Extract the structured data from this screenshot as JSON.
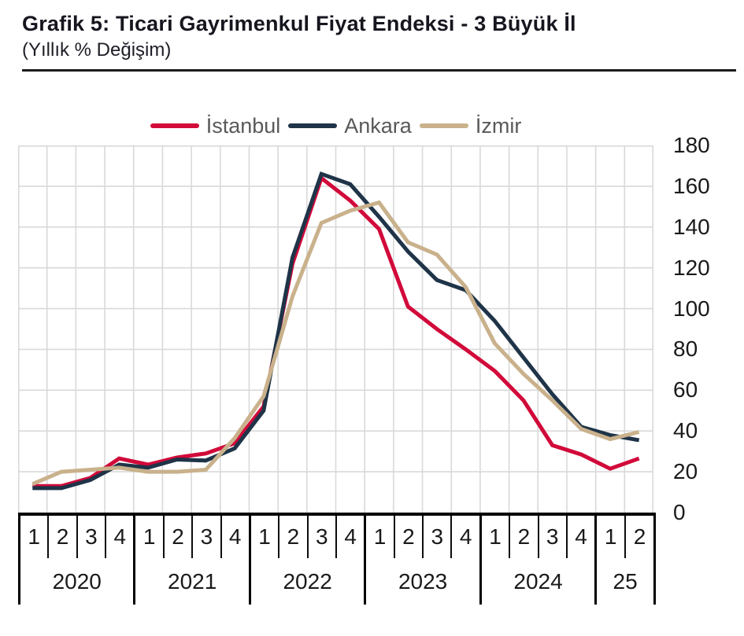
{
  "header": {
    "title": "Grafik 5: Ticari Gayrimenkul Fiyat Endeksi - 3 Büyük İl",
    "subtitle": "(Yıllık % Değişim)"
  },
  "colors": {
    "istanbul": "#d10a3a",
    "ankara": "#1f3448",
    "izmir": "#c9b18c",
    "gridline": "#d9d9d9",
    "axis": "#000000",
    "tick_text": "#1a1a1a",
    "legend_text": "#595959"
  },
  "chart_data": {
    "type": "line",
    "title": "Grafik 5: Ticari Gayrimenkul Fiyat Endeksi - 3 Büyük İl",
    "subtitle": "(Yıllık % Değişim)",
    "ylabel": "",
    "xlabel": "",
    "ylim": [
      0,
      180
    ],
    "yticks": [
      180,
      160,
      140,
      120,
      100,
      80,
      60,
      40,
      20,
      0
    ],
    "grid": true,
    "legend_position": "top",
    "years": [
      {
        "label": "2020",
        "quarters": [
          "1",
          "2",
          "3",
          "4"
        ]
      },
      {
        "label": "2021",
        "quarters": [
          "1",
          "2",
          "3",
          "4"
        ]
      },
      {
        "label": "2022",
        "quarters": [
          "1",
          "2",
          "3",
          "4"
        ]
      },
      {
        "label": "2023",
        "quarters": [
          "1",
          "2",
          "3",
          "4"
        ]
      },
      {
        "label": "2024",
        "quarters": [
          "1",
          "2",
          "3",
          "4"
        ]
      },
      {
        "label": "25",
        "quarters": [
          "1",
          "2"
        ]
      }
    ],
    "series": [
      {
        "name": "İstanbul",
        "color": "#d10a3a",
        "values": [
          13,
          13,
          17,
          26.5,
          23.5,
          27,
          29,
          34,
          52,
          122,
          164,
          153,
          139,
          101,
          90,
          80,
          69.5,
          55,
          33,
          28.5,
          21.5,
          26.5
        ]
      },
      {
        "name": "Ankara",
        "color": "#1f3448",
        "values": [
          12,
          12,
          16,
          23.5,
          22,
          26,
          25.5,
          31.5,
          50,
          125,
          166,
          161,
          145,
          128,
          114,
          109,
          94,
          76,
          58,
          42,
          38,
          35.5
        ]
      },
      {
        "name": "İzmir",
        "color": "#c9b18c",
        "values": [
          14,
          20,
          21,
          22,
          20,
          20,
          21,
          36.5,
          57,
          106,
          142,
          148,
          152,
          132.5,
          126.5,
          110.5,
          83,
          68,
          55,
          41,
          36,
          39.5
        ]
      }
    ]
  }
}
